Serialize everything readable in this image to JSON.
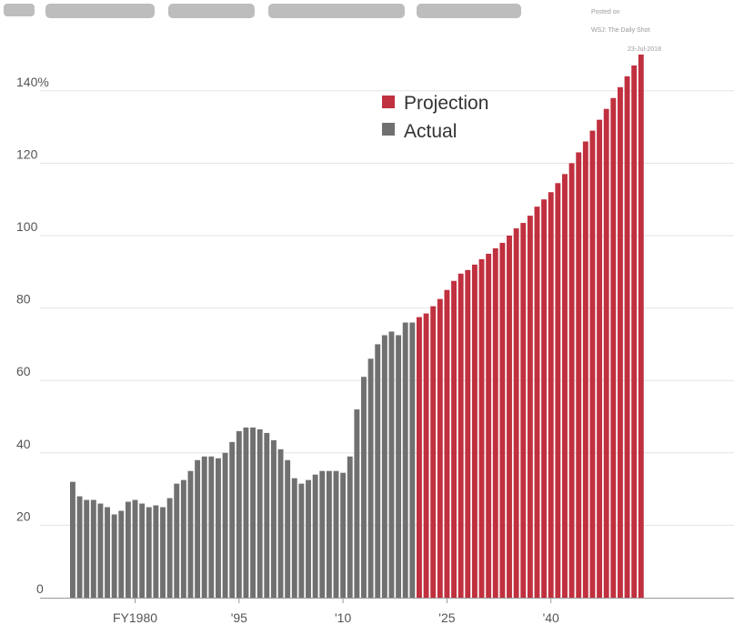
{
  "credit": {
    "line1": "Posted on",
    "line2": "WSJ: The Daily Shot",
    "line3": "23-Jul-2018"
  },
  "colors": {
    "actual": "#707070",
    "projection": "#c0303f",
    "grid": "#e3e3e3",
    "axis": "#999999"
  },
  "chart_data": {
    "type": "bar",
    "title": "",
    "xlabel": "",
    "ylabel": "",
    "ylim": [
      0,
      150
    ],
    "grid": true,
    "legend_position": "top-center",
    "y_ticks": [
      {
        "value": 0,
        "label": "0"
      },
      {
        "value": 20,
        "label": "20"
      },
      {
        "value": 40,
        "label": "40"
      },
      {
        "value": 60,
        "label": "60"
      },
      {
        "value": 80,
        "label": "80"
      },
      {
        "value": 100,
        "label": "100"
      },
      {
        "value": 120,
        "label": "120"
      },
      {
        "value": 140,
        "label": "140%"
      }
    ],
    "x_ticks": [
      {
        "year": 1980,
        "label": "FY1980"
      },
      {
        "year": 1995,
        "label": "'95"
      },
      {
        "year": 2010,
        "label": "'10"
      },
      {
        "year": 2025,
        "label": "'25"
      },
      {
        "year": 2040,
        "label": "'40"
      }
    ],
    "legend": [
      {
        "label": "Projection",
        "series": "projection"
      },
      {
        "label": "Actual",
        "series": "actual"
      }
    ],
    "series": [
      {
        "name": "Actual",
        "key": "actual",
        "start_year": 1971,
        "values": [
          32,
          28,
          27,
          27,
          26,
          25,
          23,
          24,
          26.5,
          27,
          26,
          25,
          25.5,
          25,
          27.5,
          31.5,
          32.5,
          35,
          38,
          39,
          39,
          38.5,
          40,
          43,
          46,
          47,
          47,
          46.5,
          45.5,
          43.5,
          41,
          38,
          33,
          31.5,
          32.5,
          34,
          35,
          35,
          35,
          34.5,
          39,
          52,
          61,
          66,
          70,
          72.5,
          73.5,
          72.5,
          76,
          76
        ]
      },
      {
        "name": "Projection",
        "key": "projection",
        "start_year": 2021,
        "values": [
          77.5,
          78.5,
          80.5,
          82.5,
          85,
          87.5,
          89.5,
          90.5,
          92,
          93.5,
          95,
          96.5,
          98,
          100,
          102,
          103.5,
          105.5,
          108,
          110,
          112,
          114.5,
          117,
          120,
          123,
          126,
          129,
          132,
          135,
          138,
          141,
          144,
          147,
          150
        ]
      }
    ]
  }
}
